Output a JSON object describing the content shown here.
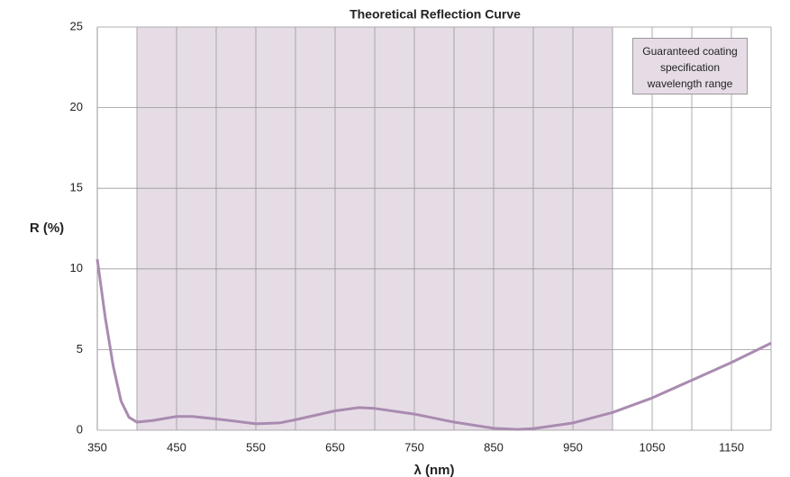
{
  "chart_data": {
    "type": "line",
    "title": "Theoretical Reflection Curve",
    "x_label": "λ (nm)",
    "y_label": "R (%)",
    "x": [
      350,
      360,
      370,
      380,
      390,
      400,
      420,
      450,
      470,
      500,
      550,
      580,
      600,
      650,
      680,
      700,
      750,
      800,
      850,
      880,
      900,
      950,
      1000,
      1050,
      1100,
      1150,
      1200
    ],
    "series": [
      {
        "name": "R (%)",
        "color": "#a98bb0",
        "values": [
          10.6,
          7.0,
          4.0,
          1.8,
          0.8,
          0.5,
          0.6,
          0.85,
          0.85,
          0.7,
          0.4,
          0.45,
          0.65,
          1.2,
          1.4,
          1.35,
          1.0,
          0.5,
          0.12,
          0.05,
          0.1,
          0.45,
          1.1,
          2.0,
          3.1,
          4.2,
          5.4
        ]
      }
    ],
    "xlim": [
      350,
      1200
    ],
    "xticks": [
      350,
      450,
      550,
      650,
      750,
      850,
      950,
      1050,
      1150
    ],
    "x_minor_grid": [
      400,
      500,
      600,
      700,
      800,
      900,
      1000,
      1100,
      1200
    ],
    "ylim": [
      0,
      25
    ],
    "yticks": [
      0,
      5,
      10,
      15,
      20,
      25
    ],
    "grid": true,
    "shaded_region": {
      "xrange": [
        400,
        1000
      ],
      "color": "#e6dce6",
      "label": "Guaranteed coating specification wavelength range"
    }
  }
}
